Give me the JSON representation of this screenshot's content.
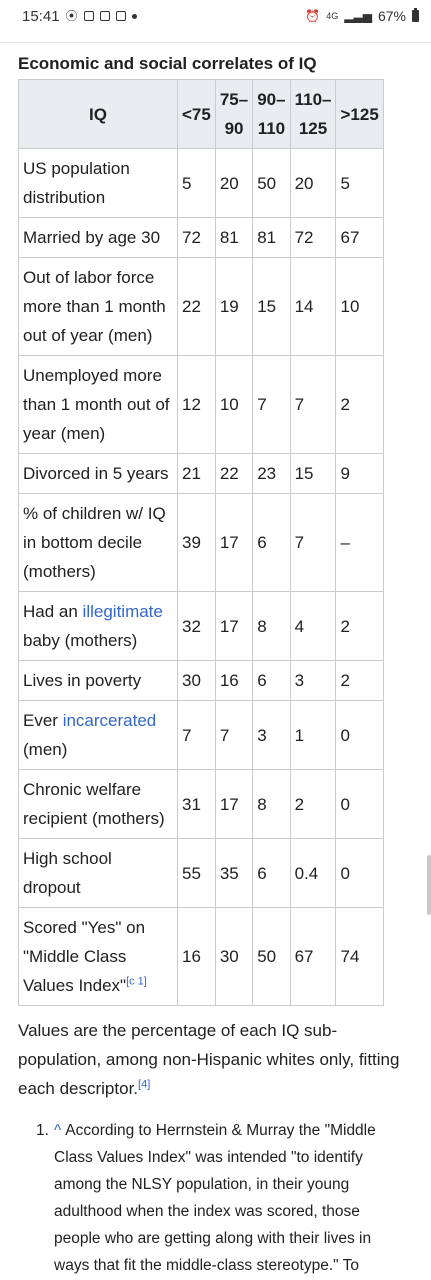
{
  "status_bar": {
    "time": "15:41",
    "network": "4G",
    "battery": "67%"
  },
  "table": {
    "caption": "Economic and social correlates of IQ",
    "headers": [
      {
        "line1": "IQ",
        "line2": ""
      },
      {
        "line1": "<75",
        "line2": ""
      },
      {
        "line1": "75–",
        "line2": "90"
      },
      {
        "line1": "90–",
        "line2": "110"
      },
      {
        "line1": "110–",
        "line2": "125"
      },
      {
        "line1": ">125",
        "line2": ""
      }
    ],
    "rows": [
      {
        "label": "US population distribution",
        "values": [
          "5",
          "20",
          "50",
          "20",
          "5"
        ]
      },
      {
        "label": "Married by age 30",
        "values": [
          "72",
          "81",
          "81",
          "72",
          "67"
        ]
      },
      {
        "label": "Out of labor force more than 1 month out of year (men)",
        "values": [
          "22",
          "19",
          "15",
          "14",
          "10"
        ]
      },
      {
        "label": "Unemployed more than 1 month out of year (men)",
        "values": [
          "12",
          "10",
          "7",
          "7",
          "2"
        ]
      },
      {
        "label": "Divorced in 5 years",
        "values": [
          "21",
          "22",
          "23",
          "15",
          "9"
        ]
      },
      {
        "label": "% of children w/ IQ in bottom decile (mothers)",
        "values": [
          "39",
          "17",
          "6",
          "7",
          "–"
        ]
      },
      {
        "label_prefix": "Had an ",
        "label_link": "illegitimate",
        "label_suffix": " baby (mothers)",
        "values": [
          "32",
          "17",
          "8",
          "4",
          "2"
        ]
      },
      {
        "label": "Lives in poverty",
        "values": [
          "30",
          "16",
          "6",
          "3",
          "2"
        ]
      },
      {
        "label_prefix": "Ever ",
        "label_link": "incarcerated",
        "label_suffix": " (men)",
        "values": [
          "7",
          "7",
          "3",
          "1",
          "0"
        ]
      },
      {
        "label": "Chronic welfare recipient (mothers)",
        "values": [
          "31",
          "17",
          "8",
          "2",
          "0"
        ]
      },
      {
        "label": "High school dropout",
        "values": [
          "55",
          "35",
          "6",
          "0.4",
          "0"
        ]
      },
      {
        "label": "Scored \"Yes\" on \"Middle Class Values Index\"",
        "label_sup": "[c 1]",
        "values": [
          "16",
          "30",
          "50",
          "67",
          "74"
        ]
      }
    ]
  },
  "note": {
    "text": "Values are the percentage of each IQ sub-population, among non-Hispanic whites only, fitting each descriptor.",
    "ref": "[4]"
  },
  "footnote": {
    "number": "1.",
    "caret": "^",
    "text": "According to Herrnstein & Murray the \"Middle Class Values Index\" was intended \"to identify among the NLSY population, in their young adulthood when the index was scored, those people who are getting along with their lives in ways that fit the middle-class stereotype.\" To"
  }
}
